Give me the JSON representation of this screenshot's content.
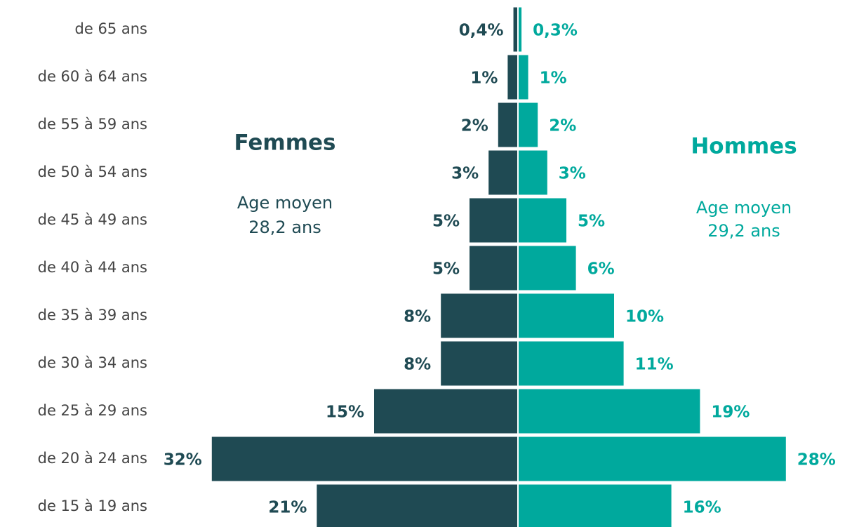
{
  "chart_data": {
    "type": "pyramid",
    "categories": [
      "de 65 ans",
      "de 60 à 64 ans",
      "de 55 à 59 ans",
      "de 50 à 54 ans",
      "de 45 à 49 ans",
      "de 40 à 44 ans",
      "de 35 à 39 ans",
      "de 30 à 34 ans",
      "de 25 à 29 ans",
      "de 20 à 24 ans",
      "de 15 à 19 ans"
    ],
    "series": [
      {
        "name": "Femmes",
        "color": "#1f4a53",
        "values": [
          0.4,
          1,
          2,
          3,
          5,
          5,
          8,
          8,
          15,
          32,
          21
        ],
        "value_labels": [
          "0,4%",
          "1%",
          "2%",
          "3%",
          "5%",
          "5%",
          "8%",
          "8%",
          "15%",
          "32%",
          "21%"
        ]
      },
      {
        "name": "Hommes",
        "color": "#00a99d",
        "values": [
          0.3,
          1,
          2,
          3,
          5,
          6,
          10,
          11,
          19,
          28,
          16
        ],
        "value_labels": [
          "0,3%",
          "1%",
          "2%",
          "3%",
          "5%",
          "6%",
          "10%",
          "11%",
          "19%",
          "28%",
          "16%"
        ]
      }
    ],
    "annotations": [
      [
        "Age moyen",
        "28,2 ans"
      ],
      [
        "Age moyen",
        "29,2 ans"
      ]
    ]
  }
}
